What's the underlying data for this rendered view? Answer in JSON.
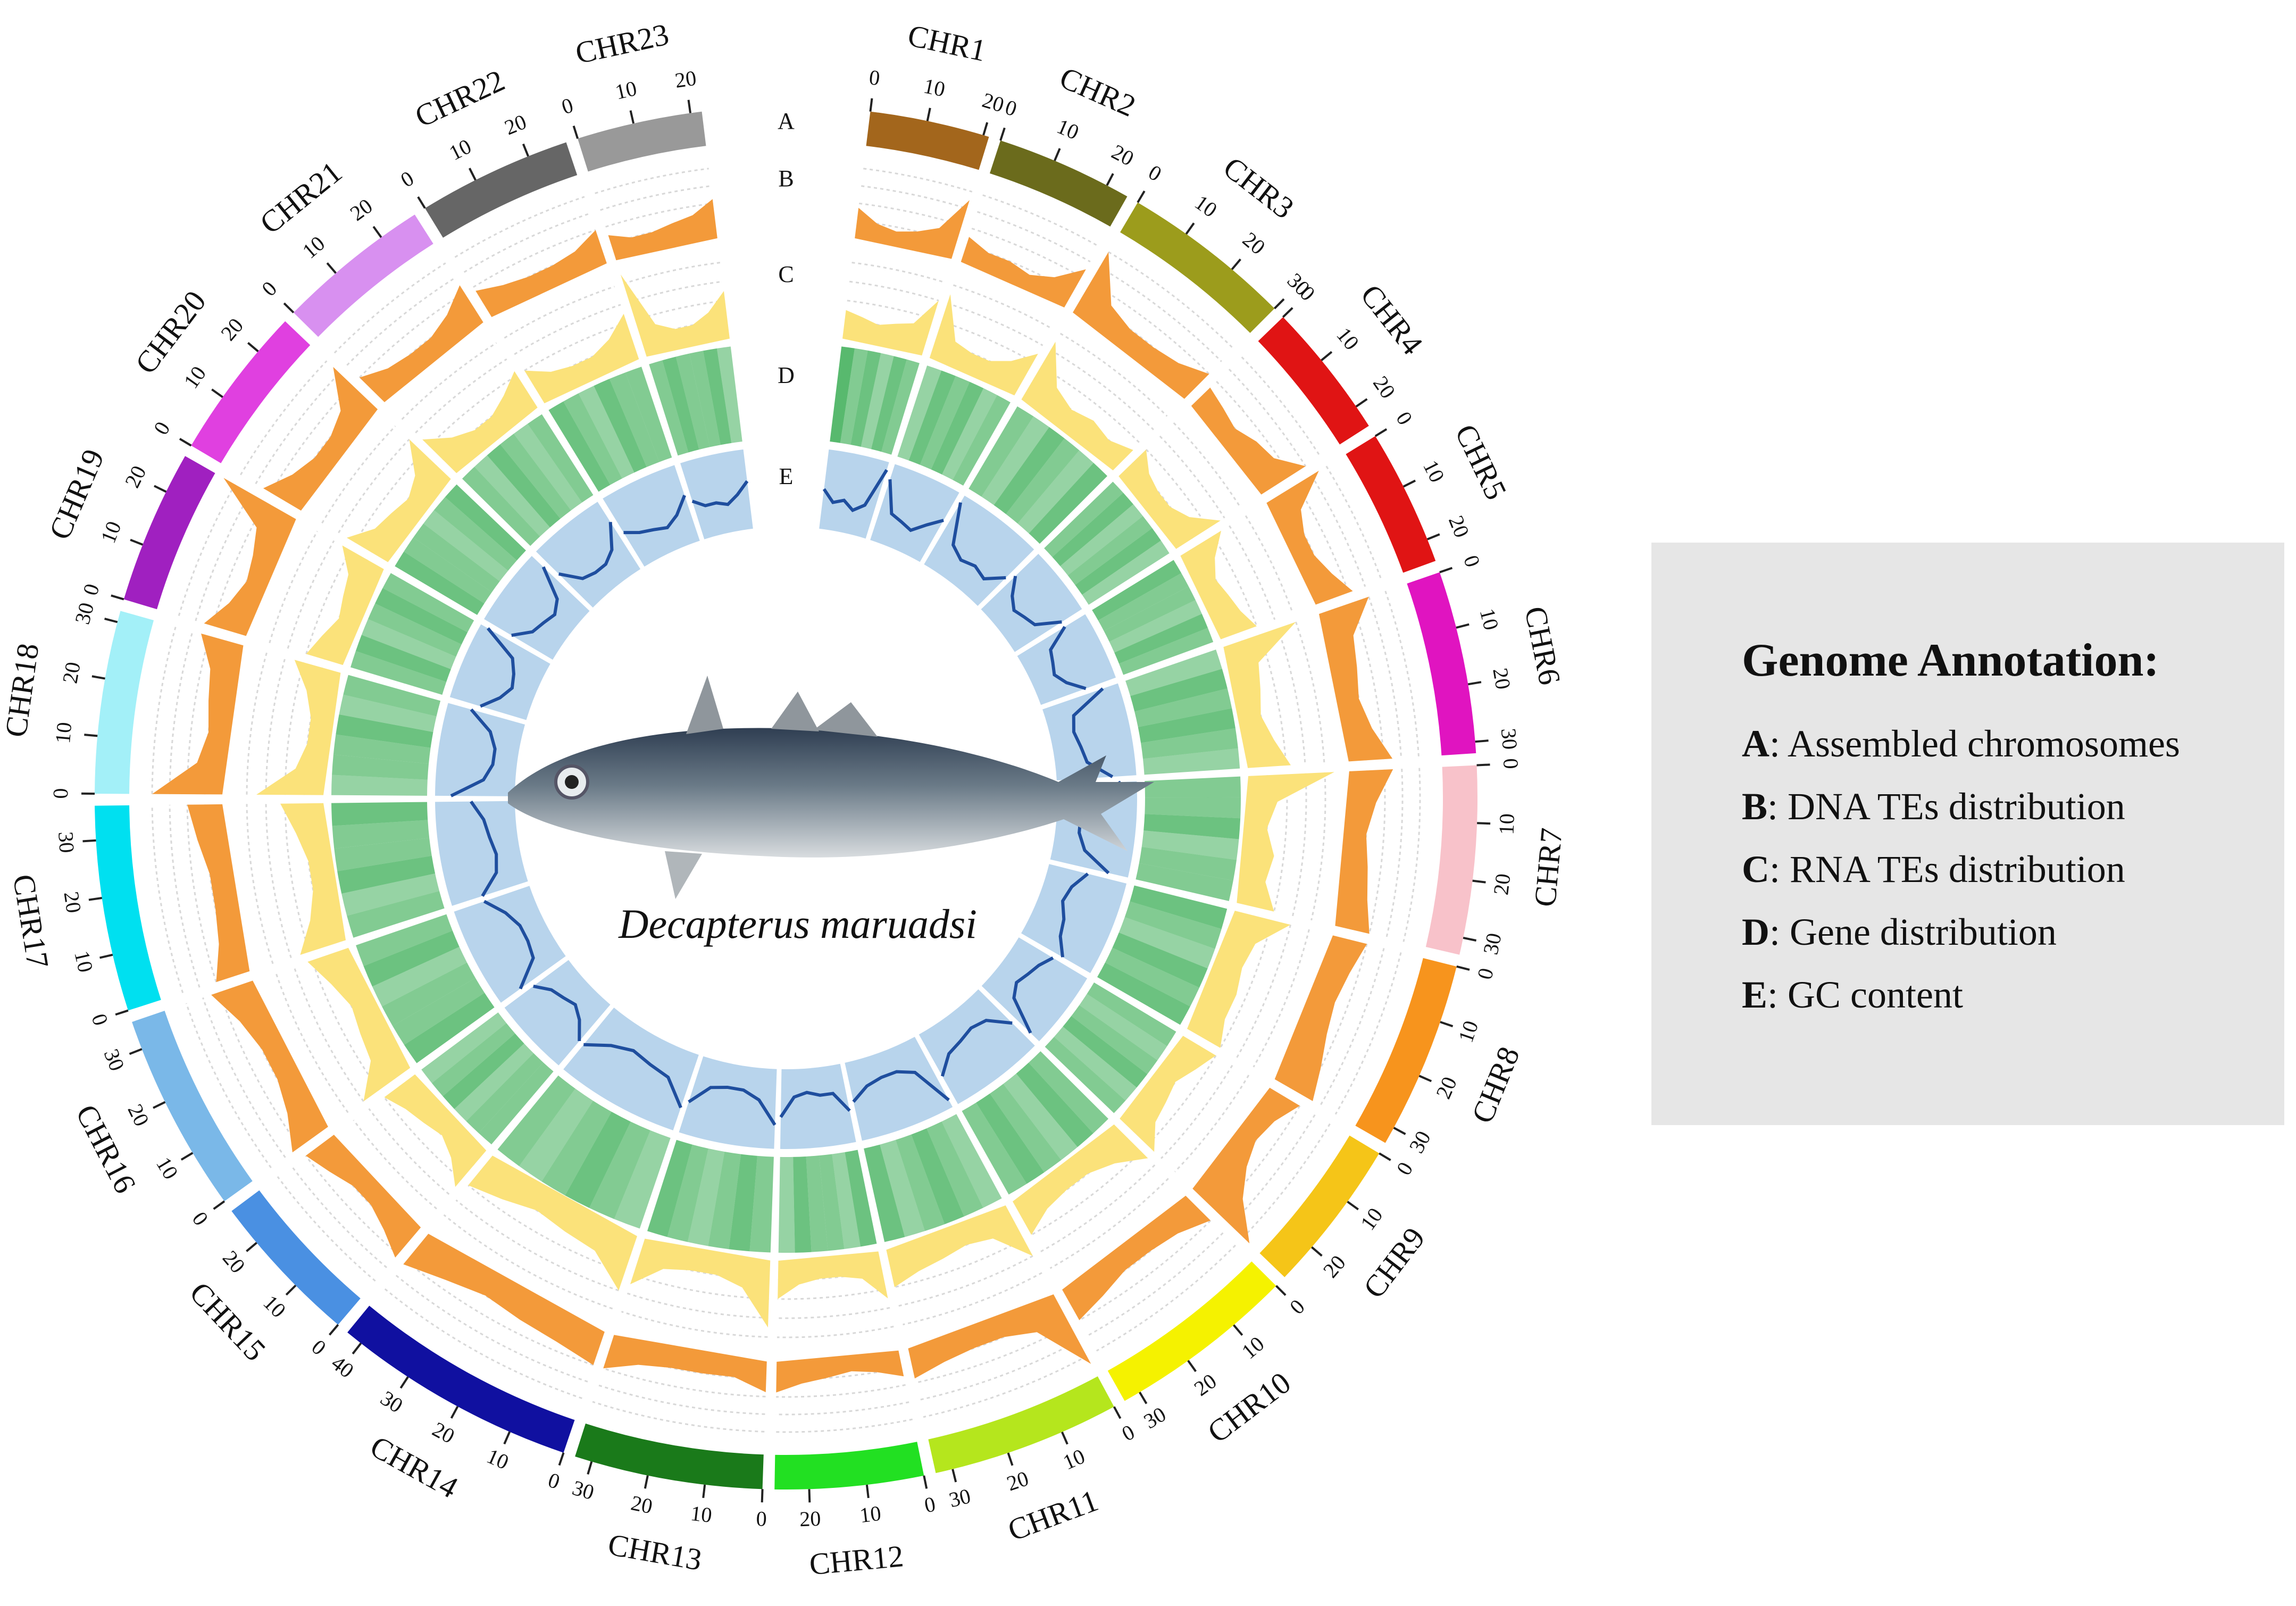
{
  "chart_data": {
    "type": "circos",
    "title": "Decapterus maruadsi",
    "ring_labels": [
      "A",
      "B",
      "C",
      "D",
      "E"
    ],
    "track_ylim": [
      0,
      1
    ],
    "chromosomes": [
      {
        "name": "CHR1",
        "length": 21,
        "color": "#a3661c",
        "ticks": [
          0,
          10,
          20
        ],
        "dna": [
          0.35,
          0.2,
          0.15,
          0.2,
          0.3,
          0.7
        ],
        "rna": [
          0.3,
          0.25,
          0.2,
          0.25,
          0.3,
          0.6
        ],
        "genes": [
          0.8,
          0.6,
          0.7,
          0.5,
          0.7,
          0.6
        ],
        "gc": [
          0.5,
          0.35,
          0.4,
          0.3,
          0.4,
          0.9
        ]
      },
      {
        "name": "CHR2",
        "length": 24,
        "color": "#6b6b1c",
        "ticks": [
          0,
          10,
          20
        ],
        "dna": [
          0.3,
          0.2,
          0.2,
          0.15,
          0.25,
          0.5
        ],
        "rna": [
          0.7,
          0.25,
          0.2,
          0.2,
          0.3,
          0.5
        ],
        "genes": [
          0.5,
          0.7,
          0.6,
          0.7,
          0.5,
          0.6
        ],
        "gc": [
          0.8,
          0.4,
          0.35,
          0.3,
          0.45,
          0.6
        ]
      },
      {
        "name": "CHR3",
        "length": 30,
        "color": "#9c9c1c",
        "ticks": [
          0,
          10,
          20,
          30
        ],
        "dna": [
          0.8,
          0.3,
          0.2,
          0.2,
          0.25,
          0.4
        ],
        "rna": [
          0.7,
          0.3,
          0.2,
          0.25,
          0.2,
          0.3
        ],
        "genes": [
          0.6,
          0.5,
          0.7,
          0.6,
          0.5,
          0.7
        ],
        "gc": [
          0.9,
          0.4,
          0.3,
          0.35,
          0.3,
          0.5
        ]
      },
      {
        "name": "CHR4",
        "length": 24,
        "color": "#e01414",
        "ticks": [
          0,
          10,
          20
        ],
        "dna": [
          0.3,
          0.25,
          0.2,
          0.3,
          0.35,
          0.6
        ],
        "rna": [
          0.4,
          0.25,
          0.2,
          0.2,
          0.3,
          0.55
        ],
        "genes": [
          0.6,
          0.7,
          0.5,
          0.6,
          0.7,
          0.5
        ],
        "gc": [
          0.6,
          0.4,
          0.3,
          0.35,
          0.4,
          0.7
        ]
      },
      {
        "name": "CHR5",
        "length": 24,
        "color": "#e01414",
        "ticks": [
          0,
          10,
          20
        ],
        "dna": [
          0.7,
          0.3,
          0.2,
          0.2,
          0.3,
          0.45
        ],
        "rna": [
          0.5,
          0.3,
          0.2,
          0.25,
          0.3,
          0.4
        ],
        "genes": [
          0.7,
          0.6,
          0.6,
          0.5,
          0.7,
          0.6
        ],
        "gc": [
          0.7,
          0.4,
          0.35,
          0.3,
          0.4,
          0.6
        ]
      },
      {
        "name": "CHR6",
        "length": 32,
        "color": "#e014c0",
        "ticks": [
          0,
          10,
          20,
          30
        ],
        "dna": [
          0.6,
          0.3,
          0.25,
          0.2,
          0.3,
          0.5
        ],
        "rna": [
          0.8,
          0.3,
          0.25,
          0.2,
          0.3,
          0.45
        ],
        "genes": [
          0.5,
          0.7,
          0.6,
          0.7,
          0.6,
          0.5
        ],
        "gc": [
          0.8,
          0.35,
          0.3,
          0.35,
          0.4,
          0.7
        ]
      },
      {
        "name": "CHR7",
        "length": 33,
        "color": "#f8c2ca",
        "ticks": [
          0,
          10,
          20,
          30
        ],
        "dna": [
          0.5,
          0.3,
          0.2,
          0.25,
          0.3,
          0.4
        ],
        "rna": [
          0.9,
          0.3,
          0.2,
          0.3,
          0.25,
          0.4
        ],
        "genes": [
          0.6,
          0.6,
          0.7,
          0.5,
          0.6,
          0.6
        ],
        "gc": [
          0.8,
          0.4,
          0.3,
          0.3,
          0.4,
          0.75
        ]
      },
      {
        "name": "CHR8",
        "length": 33,
        "color": "#f7941d",
        "ticks": [
          0,
          10,
          20,
          30
        ],
        "dna": [
          0.4,
          0.3,
          0.25,
          0.3,
          0.4,
          0.5
        ],
        "rna": [
          0.6,
          0.3,
          0.25,
          0.3,
          0.3,
          0.4
        ],
        "genes": [
          0.7,
          0.6,
          0.5,
          0.7,
          0.6,
          0.7
        ],
        "gc": [
          0.5,
          0.35,
          0.3,
          0.4,
          0.45,
          0.6
        ]
      },
      {
        "name": "CHR9",
        "length": 27,
        "color": "#f5c518",
        "ticks": [
          0,
          10,
          20
        ],
        "dna": [
          0.4,
          0.25,
          0.2,
          0.3,
          0.5,
          0.9
        ],
        "rna": [
          0.4,
          0.3,
          0.2,
          0.25,
          0.3,
          0.5
        ],
        "genes": [
          0.6,
          0.5,
          0.6,
          0.7,
          0.5,
          0.6
        ],
        "gc": [
          0.5,
          0.4,
          0.35,
          0.3,
          0.4,
          0.85
        ]
      },
      {
        "name": "CHR10",
        "length": 33,
        "color": "#f5f200",
        "ticks": [
          0,
          10,
          20,
          30
        ],
        "dna": [
          0.4,
          0.25,
          0.2,
          0.2,
          0.3,
          0.4
        ],
        "rna": [
          0.5,
          0.3,
          0.2,
          0.2,
          0.25,
          0.4
        ],
        "genes": [
          0.6,
          0.7,
          0.5,
          0.6,
          0.7,
          0.6
        ],
        "gc": [
          0.6,
          0.35,
          0.3,
          0.35,
          0.4,
          0.6
        ]
      },
      {
        "name": "CHR11",
        "length": 33,
        "color": "#b5e61d",
        "ticks": [
          0,
          10,
          20,
          30
        ],
        "dna": [
          0.9,
          0.3,
          0.2,
          0.2,
          0.25,
          0.35
        ],
        "rna": [
          0.6,
          0.25,
          0.2,
          0.25,
          0.3,
          0.4
        ],
        "genes": [
          0.5,
          0.6,
          0.7,
          0.6,
          0.5,
          0.7
        ],
        "gc": [
          0.9,
          0.4,
          0.3,
          0.3,
          0.35,
          0.5
        ]
      },
      {
        "name": "CHR12",
        "length": 26,
        "color": "#22e022",
        "ticks": [
          0,
          10,
          20
        ],
        "dna": [
          0.3,
          0.2,
          0.15,
          0.2,
          0.25,
          0.35
        ],
        "rna": [
          0.5,
          0.25,
          0.2,
          0.2,
          0.25,
          0.4
        ],
        "genes": [
          0.7,
          0.5,
          0.6,
          0.6,
          0.7,
          0.5
        ],
        "gc": [
          0.6,
          0.35,
          0.35,
          0.3,
          0.35,
          0.6
        ]
      },
      {
        "name": "CHR13",
        "length": 33,
        "color": "#1a7a1a",
        "ticks": [
          0,
          10,
          20,
          30
        ],
        "dna": [
          0.35,
          0.2,
          0.2,
          0.2,
          0.25,
          0.4
        ],
        "rna": [
          0.7,
          0.3,
          0.2,
          0.2,
          0.25,
          0.5
        ],
        "genes": [
          0.6,
          0.7,
          0.6,
          0.5,
          0.6,
          0.7
        ],
        "gc": [
          0.7,
          0.4,
          0.3,
          0.3,
          0.35,
          0.6
        ]
      },
      {
        "name": "CHR14",
        "length": 43,
        "color": "#1010a0",
        "ticks": [
          0,
          10,
          20,
          30,
          40
        ],
        "dna": [
          0.4,
          0.3,
          0.25,
          0.2,
          0.3,
          0.45
        ],
        "rna": [
          0.6,
          0.3,
          0.25,
          0.2,
          0.3,
          0.4
        ],
        "genes": [
          0.5,
          0.6,
          0.7,
          0.6,
          0.5,
          0.6
        ],
        "gc": [
          0.7,
          0.4,
          0.35,
          0.3,
          0.4,
          0.6
        ]
      },
      {
        "name": "CHR15",
        "length": 27,
        "color": "#4a90e2",
        "ticks": [
          0,
          10,
          20
        ],
        "dna": [
          0.45,
          0.3,
          0.2,
          0.2,
          0.3,
          0.4
        ],
        "rna": [
          0.5,
          0.3,
          0.2,
          0.25,
          0.3,
          0.4
        ],
        "genes": [
          0.6,
          0.6,
          0.5,
          0.7,
          0.6,
          0.5
        ],
        "gc": [
          0.6,
          0.4,
          0.3,
          0.35,
          0.4,
          0.55
        ]
      },
      {
        "name": "CHR16",
        "length": 35,
        "color": "#7ab8e8",
        "ticks": [
          0,
          10,
          20,
          30
        ],
        "dna": [
          0.5,
          0.3,
          0.2,
          0.2,
          0.3,
          0.5
        ],
        "rna": [
          0.6,
          0.3,
          0.25,
          0.2,
          0.3,
          0.45
        ],
        "genes": [
          0.7,
          0.6,
          0.6,
          0.5,
          0.7,
          0.6
        ],
        "gc": [
          0.7,
          0.35,
          0.3,
          0.3,
          0.4,
          0.6
        ]
      },
      {
        "name": "CHR17",
        "length": 36,
        "color": "#00e0f0",
        "ticks": [
          0,
          10,
          20,
          30
        ],
        "dna": [
          0.4,
          0.25,
          0.2,
          0.2,
          0.3,
          0.4
        ],
        "rna": [
          0.5,
          0.3,
          0.2,
          0.2,
          0.3,
          0.45
        ],
        "genes": [
          0.6,
          0.5,
          0.7,
          0.6,
          0.6,
          0.7
        ],
        "gc": [
          0.6,
          0.35,
          0.3,
          0.35,
          0.4,
          0.55
        ]
      },
      {
        "name": "CHR18",
        "length": 32,
        "color": "#a3f0f8",
        "ticks": [
          0,
          10,
          20,
          30
        ],
        "dna": [
          0.8,
          0.3,
          0.2,
          0.25,
          0.3,
          0.5
        ],
        "rna": [
          0.7,
          0.3,
          0.2,
          0.2,
          0.3,
          0.5
        ],
        "genes": [
          0.5,
          0.6,
          0.6,
          0.7,
          0.5,
          0.6
        ],
        "gc": [
          0.8,
          0.4,
          0.3,
          0.3,
          0.4,
          0.7
        ]
      },
      {
        "name": "CHR19",
        "length": 27,
        "color": "#a020c0",
        "ticks": [
          0,
          10,
          20
        ],
        "dna": [
          0.5,
          0.3,
          0.2,
          0.25,
          0.35,
          0.95
        ],
        "rna": [
          0.4,
          0.3,
          0.2,
          0.25,
          0.3,
          0.5
        ],
        "genes": [
          0.6,
          0.7,
          0.5,
          0.6,
          0.7,
          0.6
        ],
        "gc": [
          0.6,
          0.4,
          0.3,
          0.35,
          0.45,
          0.9
        ]
      },
      {
        "name": "CHR20",
        "length": 27,
        "color": "#e040e0",
        "ticks": [
          0,
          10,
          20
        ],
        "dna": [
          0.5,
          0.3,
          0.2,
          0.2,
          0.3,
          0.7
        ],
        "rna": [
          0.5,
          0.3,
          0.25,
          0.2,
          0.3,
          0.6
        ],
        "genes": [
          0.7,
          0.6,
          0.6,
          0.5,
          0.6,
          0.7
        ],
        "gc": [
          0.6,
          0.4,
          0.35,
          0.3,
          0.4,
          0.8
        ]
      },
      {
        "name": "CHR21",
        "length": 27,
        "color": "#d890f0",
        "ticks": [
          0,
          10,
          20
        ],
        "dna": [
          0.4,
          0.25,
          0.2,
          0.2,
          0.3,
          0.5
        ],
        "rna": [
          0.5,
          0.3,
          0.2,
          0.2,
          0.3,
          0.45
        ],
        "genes": [
          0.6,
          0.5,
          0.7,
          0.6,
          0.5,
          0.6
        ],
        "gc": [
          0.6,
          0.35,
          0.3,
          0.3,
          0.4,
          0.7
        ]
      },
      {
        "name": "CHR22",
        "length": 27,
        "color": "#666666",
        "ticks": [
          0,
          10,
          20
        ],
        "dna": [
          0.35,
          0.25,
          0.2,
          0.2,
          0.25,
          0.4
        ],
        "rna": [
          0.4,
          0.25,
          0.2,
          0.2,
          0.3,
          0.5
        ],
        "genes": [
          0.7,
          0.6,
          0.5,
          0.7,
          0.6,
          0.6
        ],
        "gc": [
          0.5,
          0.4,
          0.35,
          0.3,
          0.4,
          0.6
        ]
      },
      {
        "name": "CHR23",
        "length": 22,
        "color": "#999999",
        "ticks": [
          0,
          10,
          20
        ],
        "dna": [
          0.3,
          0.2,
          0.2,
          0.25,
          0.3,
          0.45
        ],
        "rna": [
          0.9,
          0.3,
          0.2,
          0.2,
          0.3,
          0.5
        ],
        "genes": [
          0.6,
          0.7,
          0.6,
          0.6,
          0.7,
          0.5
        ],
        "gc": [
          0.5,
          0.4,
          0.4,
          0.35,
          0.45,
          0.6
        ]
      }
    ],
    "legend": {
      "title": "Genome Annotation:",
      "items": [
        {
          "key": "A",
          "text": ": Assembled chromosomes"
        },
        {
          "key": "B",
          "text": ": DNA TEs distribution"
        },
        {
          "key": "C",
          "text": ": RNA TEs distribution"
        },
        {
          "key": "D",
          "text": ": Gene distribution"
        },
        {
          "key": "E",
          "text": ": GC content"
        }
      ]
    }
  }
}
